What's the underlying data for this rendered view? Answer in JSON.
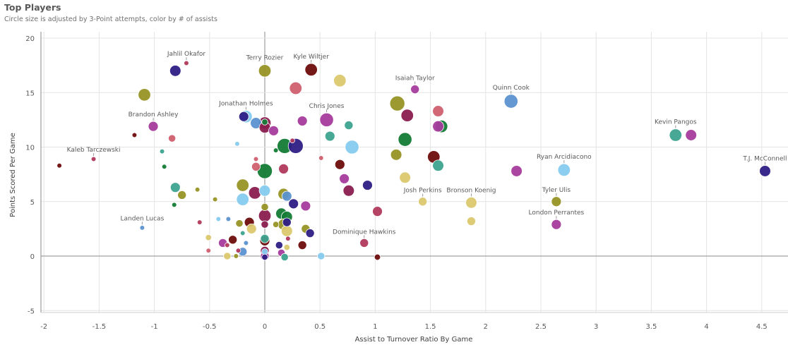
{
  "header": {
    "title": "Top Players",
    "subtitle": "Circle size is adjusted by 3-Point attempts, color by # of assists"
  },
  "chart_data": {
    "type": "scatter",
    "title": "Top Players",
    "subtitle": "Circle size is adjusted by 3-Point attempts, color by # of assists",
    "xlabel": "Assist to Turnover Ratio By Game",
    "ylabel": "Points Scored Per Game",
    "xlim": [
      -2,
      4.7
    ],
    "ylim": [
      -5.5,
      20.5
    ],
    "x_ticks": [
      "-2",
      "-1.5",
      "-1",
      "-0.5",
      "0",
      "0.5",
      "1",
      "1.5",
      "2",
      "2.5",
      "3",
      "3.5",
      "4",
      "4.5"
    ],
    "y_ticks": [
      "20",
      "15",
      "10",
      "5",
      "0",
      "-5"
    ],
    "grid": true,
    "size_encoding": "3-Point attempts (relative)",
    "color_encoding": "# of assists",
    "colors": {
      "navy": "#2e1e85",
      "olive": "#989426",
      "darkred": "#6e0c0c",
      "maroon": "#8b1d4f",
      "crimson": "#b0395c",
      "pink": "#d0606f",
      "magenta": "#a53c9c",
      "teal": "#3da48f",
      "green": "#147b35",
      "steelblue": "#5b92d0",
      "lightblue": "#86cbef",
      "khaki": "#dcc86f"
    },
    "points": [
      {
        "x": -0.71,
        "y": 17.7,
        "size": 2,
        "color": "crimson",
        "label": "Jahlil Okafor"
      },
      {
        "x": -0.81,
        "y": 17.0,
        "size": 7,
        "color": "navy"
      },
      {
        "x": 0,
        "y": 17.0,
        "size": 8,
        "color": "olive",
        "label": "Terry Rozier"
      },
      {
        "x": 0.42,
        "y": 17.1,
        "size": 8,
        "color": "darkred",
        "label": "Kyle Wiltjer"
      },
      {
        "x": 1.36,
        "y": 15.3,
        "size": 5,
        "color": "magenta",
        "label": "Isaiah Taylor"
      },
      {
        "x": 2.23,
        "y": 14.2,
        "size": 9,
        "color": "steelblue",
        "label": "Quinn Cook"
      },
      {
        "x": 3.72,
        "y": 11.1,
        "size": 8,
        "color": "teal",
        "label": "Kevin Pangos"
      },
      {
        "x": 3.86,
        "y": 11.1,
        "size": 7,
        "color": "magenta"
      },
      {
        "x": 4.53,
        "y": 7.8,
        "size": 7,
        "color": "navy",
        "label": "T.J. McConnell"
      },
      {
        "x": 2.71,
        "y": 7.9,
        "size": 8,
        "color": "lightblue",
        "label": "Ryan Arcidiacono"
      },
      {
        "x": 2.64,
        "y": 5.0,
        "size": 6,
        "color": "olive",
        "label": "Tyler Ulis"
      },
      {
        "x": 2.64,
        "y": 2.9,
        "size": 6,
        "color": "magenta",
        "label": "London Perrantes"
      },
      {
        "x": 1.87,
        "y": 4.9,
        "size": 7,
        "color": "khaki",
        "label": "Bronson Koenig"
      },
      {
        "x": 1.43,
        "y": 5.0,
        "size": 5,
        "color": "khaki",
        "label": "Josh Perkins"
      },
      {
        "x": 0.9,
        "y": 1.2,
        "size": 5,
        "color": "crimson",
        "label": "Dominique Hawkins"
      },
      {
        "x": 0.56,
        "y": 12.5,
        "size": 9,
        "color": "magenta",
        "label": "Chris Jones"
      },
      {
        "x": -0.17,
        "y": 12.8,
        "size": 8,
        "color": "lightblue",
        "label": "Jonathan Holmes"
      },
      {
        "x": -1.01,
        "y": 11.9,
        "size": 6,
        "color": "magenta",
        "label": "Brandon Ashley"
      },
      {
        "x": -1.55,
        "y": 8.9,
        "size": 2,
        "color": "crimson",
        "label": "Kaleb Tarczewski"
      },
      {
        "x": -1.11,
        "y": 2.6,
        "size": 2,
        "color": "steelblue",
        "label": "Landen Lucas"
      },
      {
        "x": -1.09,
        "y": 14.8,
        "size": 8,
        "color": "olive"
      },
      {
        "x": -1.86,
        "y": 8.3,
        "size": 2,
        "color": "darkred"
      },
      {
        "x": -1.18,
        "y": 11.1,
        "size": 2,
        "color": "darkred"
      },
      {
        "x": -0.84,
        "y": 10.8,
        "size": 4,
        "color": "pink"
      },
      {
        "x": -0.93,
        "y": 9.6,
        "size": 2,
        "color": "teal"
      },
      {
        "x": -0.91,
        "y": 8.2,
        "size": 2,
        "color": "green"
      },
      {
        "x": -0.81,
        "y": 6.3,
        "size": 6,
        "color": "teal"
      },
      {
        "x": -0.75,
        "y": 5.6,
        "size": 5,
        "color": "olive"
      },
      {
        "x": -0.82,
        "y": 4.7,
        "size": 2,
        "color": "green"
      },
      {
        "x": -0.61,
        "y": 6.1,
        "size": 2,
        "color": "olive"
      },
      {
        "x": -0.45,
        "y": 5.2,
        "size": 2,
        "color": "olive"
      },
      {
        "x": -0.59,
        "y": 3.1,
        "size": 2,
        "color": "crimson"
      },
      {
        "x": -0.51,
        "y": 1.7,
        "size": 3,
        "color": "khaki"
      },
      {
        "x": -0.51,
        "y": 0.5,
        "size": 2,
        "color": "pink"
      },
      {
        "x": -0.42,
        "y": 3.4,
        "size": 2,
        "color": "lightblue"
      },
      {
        "x": -0.33,
        "y": 3.4,
        "size": 2,
        "color": "steelblue"
      },
      {
        "x": -0.38,
        "y": 1.2,
        "size": 5,
        "color": "magenta"
      },
      {
        "x": -0.34,
        "y": 1.0,
        "size": 2,
        "color": "crimson"
      },
      {
        "x": -0.34,
        "y": 0,
        "size": 4,
        "color": "khaki"
      },
      {
        "x": -0.29,
        "y": 1.5,
        "size": 5,
        "color": "darkred"
      },
      {
        "x": -0.24,
        "y": 0.5,
        "size": 2,
        "color": "crimson"
      },
      {
        "x": -0.26,
        "y": 0,
        "size": 2,
        "color": "olive"
      },
      {
        "x": -0.23,
        "y": 3.0,
        "size": 4,
        "color": "olive"
      },
      {
        "x": -0.2,
        "y": 2.1,
        "size": 2,
        "color": "teal"
      },
      {
        "x": -0.2,
        "y": 6.5,
        "size": 8,
        "color": "olive"
      },
      {
        "x": -0.2,
        "y": 5.2,
        "size": 8,
        "color": "lightblue"
      },
      {
        "x": -0.14,
        "y": 3.1,
        "size": 6,
        "color": "darkred"
      },
      {
        "x": -0.12,
        "y": 2.5,
        "size": 6,
        "color": "khaki"
      },
      {
        "x": -0.17,
        "y": 1.2,
        "size": 2,
        "color": "steelblue"
      },
      {
        "x": -0.2,
        "y": 0.4,
        "size": 5,
        "color": "steelblue"
      },
      {
        "x": -0.25,
        "y": 10.3,
        "size": 2,
        "color": "lightblue"
      },
      {
        "x": -0.08,
        "y": 8.9,
        "size": 2,
        "color": "pink"
      },
      {
        "x": -0.08,
        "y": 8.2,
        "size": 5,
        "color": "pink"
      },
      {
        "x": -0.09,
        "y": 5.8,
        "size": 8,
        "color": "maroon"
      },
      {
        "x": -0.08,
        "y": 12.2,
        "size": 7,
        "color": "steelblue"
      },
      {
        "x": -0.19,
        "y": 12.8,
        "size": 6,
        "color": "navy"
      },
      {
        "x": 0,
        "y": 12.2,
        "size": 8,
        "color": "maroon"
      },
      {
        "x": 0,
        "y": 11.8,
        "size": 7,
        "color": "maroon"
      },
      {
        "x": 0,
        "y": 12.3,
        "size": 3,
        "color": "green"
      },
      {
        "x": 0.08,
        "y": 11.5,
        "size": 6,
        "color": "magenta"
      },
      {
        "x": 0,
        "y": 7.8,
        "size": 10,
        "color": "green"
      },
      {
        "x": 0,
        "y": 6.0,
        "size": 7,
        "color": "lightblue"
      },
      {
        "x": 0,
        "y": 4.5,
        "size": 4,
        "color": "olive"
      },
      {
        "x": 0,
        "y": 3.7,
        "size": 8,
        "color": "maroon"
      },
      {
        "x": 0,
        "y": 2.9,
        "size": 4,
        "color": "maroon"
      },
      {
        "x": 0,
        "y": 1.6,
        "size": 5,
        "color": "teal"
      },
      {
        "x": 0,
        "y": 1.4,
        "size": 6,
        "color": "darkred"
      },
      {
        "x": 0,
        "y": 0.5,
        "size": 5,
        "color": "maroon"
      },
      {
        "x": 0,
        "y": 0.4,
        "size": 3,
        "color": "lightblue"
      },
      {
        "x": 0,
        "y": 0,
        "size": 5,
        "color": "magenta"
      },
      {
        "x": 0,
        "y": -0.1,
        "size": 3,
        "color": "navy"
      },
      {
        "x": 0.18,
        "y": 10.1,
        "size": 10,
        "color": "green"
      },
      {
        "x": 0.28,
        "y": 10.1,
        "size": 10,
        "color": "navy"
      },
      {
        "x": 0.1,
        "y": 9.7,
        "size": 2,
        "color": "green"
      },
      {
        "x": 0.25,
        "y": 10.6,
        "size": 2,
        "color": "crimson"
      },
      {
        "x": 0.17,
        "y": 8.0,
        "size": 6,
        "color": "crimson"
      },
      {
        "x": 0.17,
        "y": 5.7,
        "size": 7,
        "color": "olive"
      },
      {
        "x": 0.2,
        "y": 5.5,
        "size": 6,
        "color": "steelblue"
      },
      {
        "x": 0.26,
        "y": 4.8,
        "size": 6,
        "color": "navy"
      },
      {
        "x": 0.37,
        "y": 4.6,
        "size": 6,
        "color": "magenta"
      },
      {
        "x": 0.15,
        "y": 3.9,
        "size": 7,
        "color": "green"
      },
      {
        "x": 0.2,
        "y": 3.6,
        "size": 7,
        "color": "green"
      },
      {
        "x": 0.2,
        "y": 3.1,
        "size": 5,
        "color": "navy"
      },
      {
        "x": 0.17,
        "y": 2.9,
        "size": 7,
        "color": "olive"
      },
      {
        "x": 0.2,
        "y": 2.3,
        "size": 7,
        "color": "khaki"
      },
      {
        "x": 0.1,
        "y": 2.9,
        "size": 3,
        "color": "olive"
      },
      {
        "x": 0.21,
        "y": 1.6,
        "size": 2,
        "color": "crimson"
      },
      {
        "x": 0.2,
        "y": 0.8,
        "size": 3,
        "color": "khaki"
      },
      {
        "x": 0.13,
        "y": 1.0,
        "size": 4,
        "color": "navy"
      },
      {
        "x": 0.15,
        "y": 0.3,
        "size": 4,
        "color": "magenta"
      },
      {
        "x": 0.18,
        "y": -0.1,
        "size": 4,
        "color": "teal"
      },
      {
        "x": 0.37,
        "y": 2.5,
        "size": 5,
        "color": "olive"
      },
      {
        "x": 0.41,
        "y": 2.1,
        "size": 5,
        "color": "navy"
      },
      {
        "x": 0.34,
        "y": 1.0,
        "size": 5,
        "color": "darkred"
      },
      {
        "x": 0.51,
        "y": 0,
        "size": 4,
        "color": "lightblue"
      },
      {
        "x": 0.34,
        "y": 12.4,
        "size": 6,
        "color": "magenta"
      },
      {
        "x": 0.59,
        "y": 11.0,
        "size": 6,
        "color": "teal"
      },
      {
        "x": 0.76,
        "y": 12.0,
        "size": 5,
        "color": "teal"
      },
      {
        "x": 0.79,
        "y": 10.0,
        "size": 9,
        "color": "lightblue"
      },
      {
        "x": 0.68,
        "y": 8.4,
        "size": 6,
        "color": "darkred"
      },
      {
        "x": 0.51,
        "y": 9.0,
        "size": 2,
        "color": "pink"
      },
      {
        "x": 0.72,
        "y": 7.1,
        "size": 6,
        "color": "magenta"
      },
      {
        "x": 0.76,
        "y": 6.0,
        "size": 7,
        "color": "maroon"
      },
      {
        "x": 0.93,
        "y": 6.5,
        "size": 6,
        "color": "navy"
      },
      {
        "x": 1.02,
        "y": 4.1,
        "size": 6,
        "color": "crimson"
      },
      {
        "x": 1.02,
        "y": -0.1,
        "size": 3,
        "color": "darkred"
      },
      {
        "x": 0.28,
        "y": 15.4,
        "size": 8,
        "color": "pink"
      },
      {
        "x": 0.68,
        "y": 16.1,
        "size": 8,
        "color": "khaki"
      },
      {
        "x": 1.2,
        "y": 14.0,
        "size": 10,
        "color": "olive"
      },
      {
        "x": 1.29,
        "y": 12.9,
        "size": 8,
        "color": "maroon"
      },
      {
        "x": 1.27,
        "y": 10.7,
        "size": 9,
        "color": "green"
      },
      {
        "x": 1.19,
        "y": 9.3,
        "size": 7,
        "color": "olive"
      },
      {
        "x": 1.27,
        "y": 7.2,
        "size": 7,
        "color": "khaki"
      },
      {
        "x": 1.53,
        "y": 9.1,
        "size": 8,
        "color": "darkred"
      },
      {
        "x": 1.57,
        "y": 13.3,
        "size": 7,
        "color": "pink"
      },
      {
        "x": 1.6,
        "y": 11.9,
        "size": 8,
        "color": "green"
      },
      {
        "x": 1.57,
        "y": 11.9,
        "size": 7,
        "color": "magenta"
      },
      {
        "x": 1.57,
        "y": 8.3,
        "size": 7,
        "color": "teal"
      },
      {
        "x": 1.87,
        "y": 3.2,
        "size": 5,
        "color": "khaki"
      },
      {
        "x": 2.28,
        "y": 7.8,
        "size": 7,
        "color": "magenta"
      }
    ]
  }
}
